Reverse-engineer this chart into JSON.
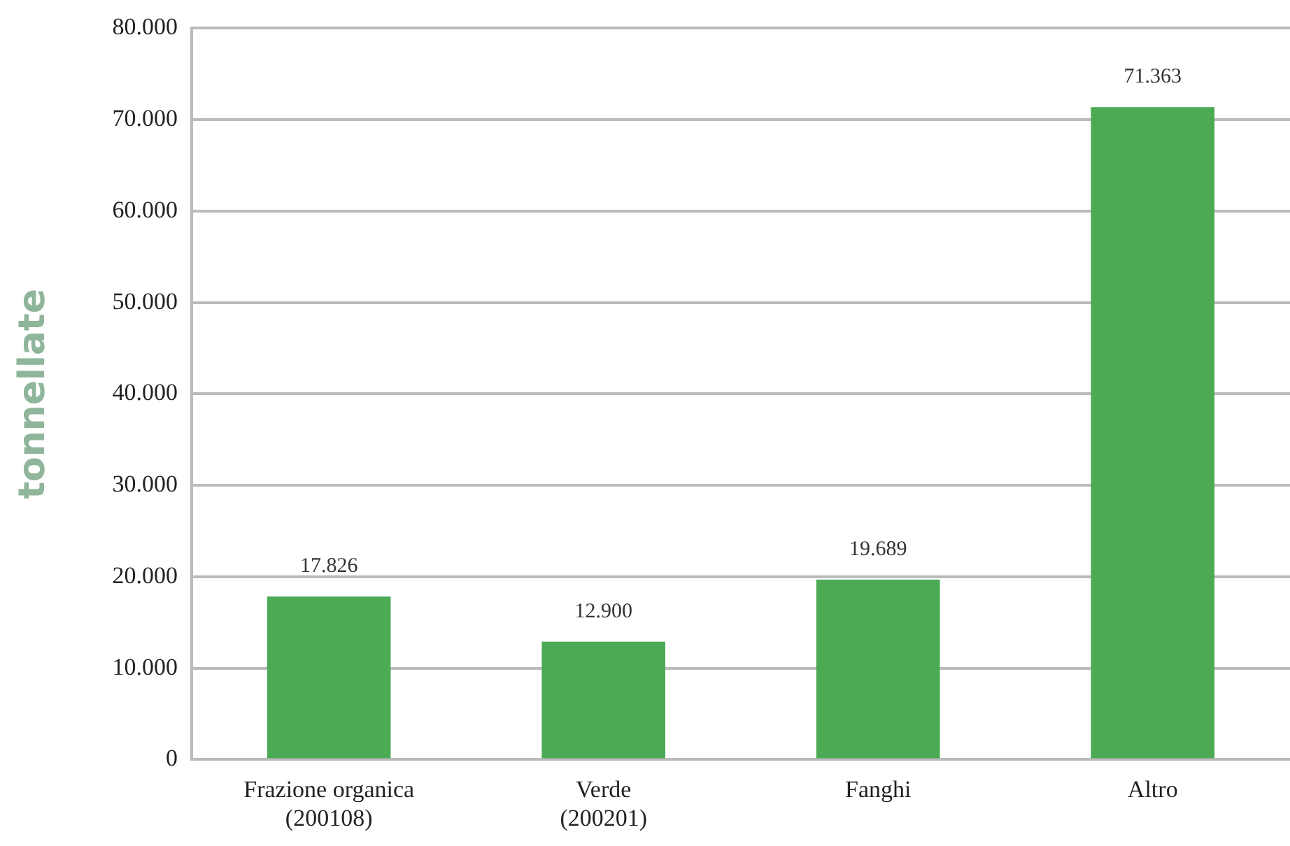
{
  "chart_data": {
    "type": "bar",
    "ylabel": "tonnellate",
    "categories": [
      "Frazione organica\n(200108)",
      "Verde\n(200201)",
      "Fanghi",
      "Altro"
    ],
    "values": [
      17826,
      12900,
      19689,
      71363
    ],
    "value_labels": [
      "17.826",
      "12.900",
      "19.689",
      "71.363"
    ],
    "color": "#4caa55",
    "ylim": [
      0,
      80000
    ],
    "yticks": [
      {
        "value": 0,
        "label": "0"
      },
      {
        "value": 10000,
        "label": "10.000"
      },
      {
        "value": 20000,
        "label": "20.000"
      },
      {
        "value": 30000,
        "label": "30.000"
      },
      {
        "value": 40000,
        "label": "40.000"
      },
      {
        "value": 50000,
        "label": "50.000"
      },
      {
        "value": 60000,
        "label": "60.000"
      },
      {
        "value": 70000,
        "label": "70.000"
      },
      {
        "value": 80000,
        "label": "80.000"
      }
    ],
    "grid": "y",
    "legend": false
  }
}
